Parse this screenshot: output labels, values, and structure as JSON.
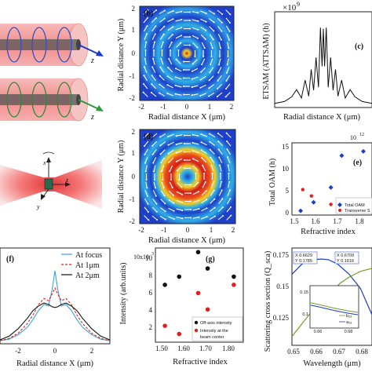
{
  "panels": {
    "b": {
      "tag": "(b)",
      "xlabel": "Radial distance X (μm)",
      "ylabel": "Radial distance Y (μm)"
    },
    "c": {
      "tag": "(c)",
      "xlabel": "Radial distance X (μm)",
      "ylabel": "ETSAM (ATTSAM) (h)",
      "scale": "×10",
      "scale_exp": "9"
    },
    "d": {
      "tag": "(d)",
      "xlabel": "Radial distance X (μm)",
      "ylabel": "Radial distance Y (μm)"
    },
    "e": {
      "tag": "(e)",
      "xlabel": "Refractive index",
      "ylabel": "Total OAM (h)",
      "scale": "10",
      "scale_exp": "12",
      "legend": [
        "Total OAM",
        "Transverse S"
      ]
    },
    "f": {
      "tag": "(f)",
      "xlabel": "Radial distance X (μm)",
      "legend": [
        "At focus",
        "At 1μm",
        "At 2μm"
      ]
    },
    "g": {
      "tag": "(g)",
      "xlabel": "Refractive index",
      "ylabel": "Intensity (arb.units)",
      "scale": "10x10",
      "scale_exp": "3",
      "legend": [
        "Off-axis intensity",
        "Intensity at the",
        "beam center"
      ]
    },
    "h": {
      "xlabel": "Wavelength (μm)",
      "ylabel": "Scattering cross section (Q_sca)",
      "callouts": [
        [
          "X 0.6629",
          "Y 0.1785"
        ],
        [
          "X 0.6709",
          "Y 0.1616"
        ]
      ],
      "inset_labels": [
        "b₂₈",
        "a₂₈"
      ]
    }
  },
  "sketches": {
    "axis_z": "z",
    "axis_x": "x",
    "axis_y": "y"
  },
  "ticks": {
    "b_x": [
      "-2",
      "-1",
      "0",
      "1",
      "2"
    ],
    "b_y": [
      "2",
      "1",
      "0",
      "-1",
      "-2"
    ],
    "e_y": [
      "15",
      "10",
      "5",
      "0"
    ],
    "e_x": [
      "1.5",
      "1.6",
      "1.7",
      "1.8"
    ],
    "f_x": [
      "-2",
      "0",
      "2"
    ],
    "g_y": [
      "10",
      "8",
      "6",
      "4",
      "2"
    ],
    "g_x": [
      "1.50",
      "1.60",
      "1.70",
      "1.80"
    ],
    "h_y": [
      "0.175",
      "0.15",
      "0.125"
    ],
    "h_x": [
      "0.65",
      "0.66",
      "0.67",
      "0.68"
    ],
    "inset_y": [
      "0.15",
      "0.1"
    ],
    "inset_x": [
      "0.66",
      "0.68"
    ]
  },
  "colors": {
    "red": "#e02020",
    "blue": "#1a3cc8",
    "black": "#111111",
    "olive": "#7a9a2a",
    "cyan": "#3aa3d8"
  },
  "chart_data": [
    {
      "type": "scatter",
      "panel": "e",
      "series": [
        {
          "name": "Total OAM",
          "x": [
            1.52,
            1.58,
            1.66,
            1.71,
            1.81
          ],
          "y": [
            1.0,
            3.0,
            6.5,
            14.0,
            15.0
          ]
        },
        {
          "name": "Transverse S",
          "x": [
            1.53,
            1.57,
            1.66,
            1.7,
            1.81
          ],
          "y": [
            6.0,
            4.5,
            2.5,
            2.0,
            1.5
          ]
        }
      ],
      "ylim": [
        0,
        17
      ],
      "xlim": [
        1.48,
        1.85
      ]
    },
    {
      "type": "scatter",
      "panel": "g",
      "series": [
        {
          "name": "Off-axis intensity",
          "x": [
            1.52,
            1.58,
            1.66,
            1.7,
            1.81
          ],
          "y": [
            7.0,
            8.0,
            11.0,
            9.0,
            8.0
          ]
        },
        {
          "name": "Intensity at the beam center",
          "x": [
            1.52,
            1.58,
            1.66,
            1.7,
            1.81
          ],
          "y": [
            2.0,
            1.0,
            6.0,
            4.0,
            7.0
          ]
        }
      ],
      "ylim": [
        0,
        11.5
      ],
      "xlim": [
        1.48,
        1.85
      ]
    },
    {
      "type": "line",
      "panel": "f",
      "xlim": [
        -3,
        3
      ],
      "series": [
        {
          "name": "At focus",
          "x": [
            -3,
            -2.5,
            -2,
            -1.5,
            -1.2,
            -0.9,
            -0.6,
            -0.35,
            -0.15,
            0,
            0.15,
            0.35,
            0.6,
            0.9,
            1.2,
            1.5,
            2,
            2.5,
            3
          ],
          "y": [
            0.02,
            0.04,
            0.1,
            0.2,
            0.3,
            0.42,
            0.5,
            0.48,
            0.7,
            0.95,
            0.7,
            0.48,
            0.5,
            0.42,
            0.3,
            0.2,
            0.1,
            0.04,
            0.02
          ]
        },
        {
          "name": "At 1μm",
          "x": [
            -3,
            -2.5,
            -2,
            -1.5,
            -1.2,
            -0.9,
            -0.6,
            -0.35,
            -0.15,
            0,
            0.15,
            0.35,
            0.6,
            0.9,
            1.2,
            1.5,
            2,
            2.5,
            3
          ],
          "y": [
            0.02,
            0.05,
            0.12,
            0.25,
            0.36,
            0.5,
            0.58,
            0.55,
            0.64,
            0.72,
            0.64,
            0.55,
            0.58,
            0.5,
            0.36,
            0.25,
            0.12,
            0.05,
            0.02
          ]
        },
        {
          "name": "At 2μm",
          "x": [
            -3,
            -2.5,
            -2,
            -1.5,
            -1.2,
            -0.9,
            -0.6,
            -0.35,
            -0.15,
            0,
            0.15,
            0.35,
            0.6,
            0.9,
            1.2,
            1.5,
            2,
            2.5,
            3
          ],
          "y": [
            0.03,
            0.08,
            0.18,
            0.32,
            0.42,
            0.48,
            0.52,
            0.5,
            0.47,
            0.46,
            0.47,
            0.5,
            0.52,
            0.48,
            0.42,
            0.32,
            0.18,
            0.08,
            0.03
          ]
        }
      ]
    },
    {
      "type": "line",
      "panel": "c",
      "xlim": [
        -2,
        2
      ],
      "ylim": [
        0,
        15
      ],
      "series": [
        {
          "name": "ETSAM",
          "x": [
            -2,
            -1.6,
            -1.3,
            -1.1,
            -0.9,
            -0.75,
            -0.6,
            -0.5,
            -0.4,
            -0.3,
            -0.2,
            -0.12,
            -0.05,
            0,
            0.05,
            0.12,
            0.2,
            0.3,
            0.4,
            0.5,
            0.6,
            0.75,
            0.9,
            1.1,
            1.3,
            1.6,
            2
          ],
          "y": [
            0.3,
            0.6,
            1.4,
            2.6,
            1.2,
            4.2,
            1.5,
            6.0,
            2.5,
            8.0,
            3.0,
            13.0,
            6.5,
            12.8,
            6.5,
            13.0,
            3.0,
            8.0,
            2.5,
            6.0,
            1.5,
            4.2,
            1.2,
            2.6,
            1.4,
            0.6,
            0.3
          ]
        }
      ]
    },
    {
      "type": "line",
      "panel": "h",
      "xlim": [
        0.65,
        0.685
      ],
      "ylim": [
        0.12,
        0.185
      ],
      "series": [
        {
          "name": "blue",
          "x": [
            0.65,
            0.655,
            0.66,
            0.6629,
            0.666,
            0.67,
            0.675,
            0.68,
            0.685
          ],
          "y": [
            0.168,
            0.176,
            0.178,
            0.1785,
            0.178,
            0.175,
            0.168,
            0.158,
            0.14
          ]
        },
        {
          "name": "olive",
          "x": [
            0.65,
            0.655,
            0.66,
            0.665,
            0.67,
            0.6709,
            0.675,
            0.68,
            0.685
          ],
          "y": [
            0.125,
            0.135,
            0.145,
            0.153,
            0.16,
            0.1616,
            0.166,
            0.17,
            0.172
          ]
        }
      ]
    }
  ]
}
